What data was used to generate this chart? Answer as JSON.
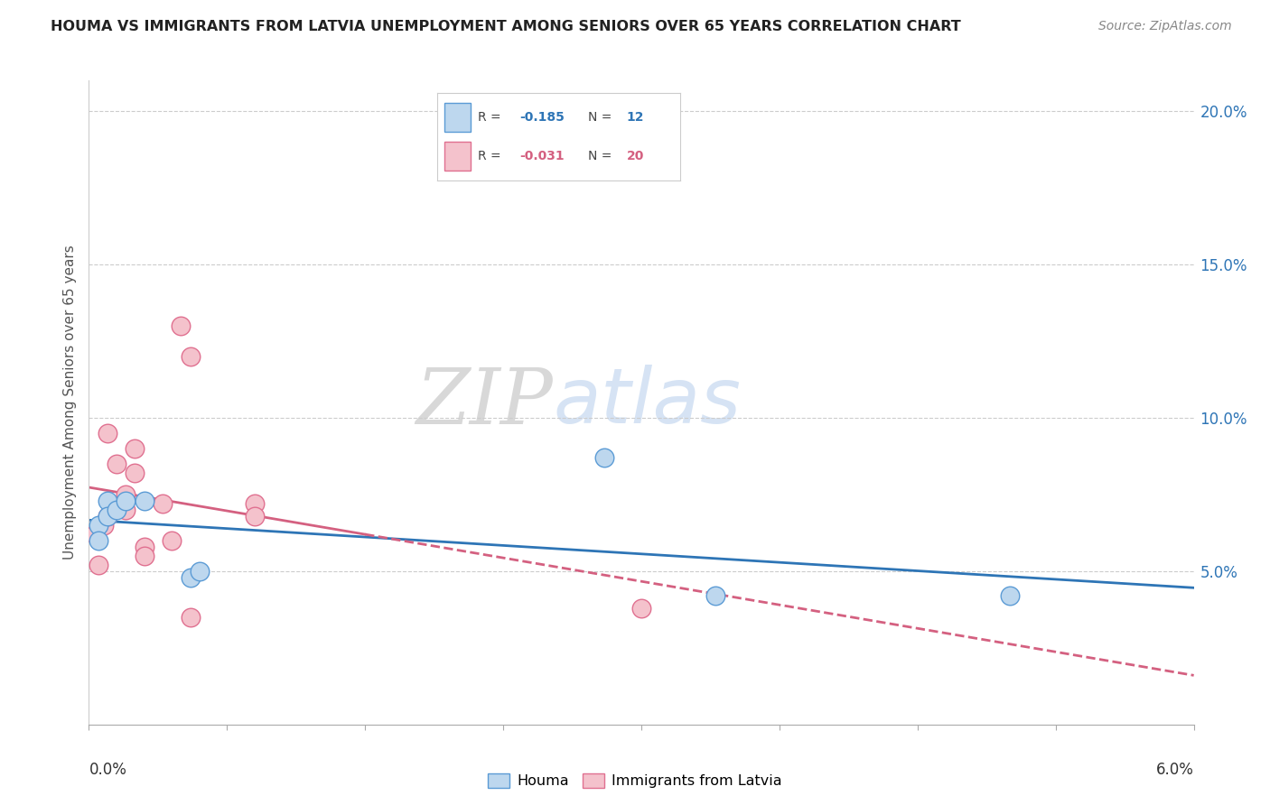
{
  "title": "HOUMA VS IMMIGRANTS FROM LATVIA UNEMPLOYMENT AMONG SENIORS OVER 65 YEARS CORRELATION CHART",
  "source": "Source: ZipAtlas.com",
  "ylabel": "Unemployment Among Seniors over 65 years",
  "xlim": [
    0.0,
    0.06
  ],
  "ylim": [
    0.0,
    0.21
  ],
  "yticks": [
    0.05,
    0.1,
    0.15,
    0.2
  ],
  "ytick_labels": [
    "5.0%",
    "10.0%",
    "15.0%",
    "20.0%"
  ],
  "houma_x": [
    0.0005,
    0.0005,
    0.001,
    0.001,
    0.0015,
    0.002,
    0.003,
    0.0055,
    0.006,
    0.028,
    0.034,
    0.05
  ],
  "houma_y": [
    0.065,
    0.06,
    0.073,
    0.068,
    0.07,
    0.073,
    0.073,
    0.048,
    0.05,
    0.087,
    0.042,
    0.042
  ],
  "latvia_x": [
    0.0003,
    0.0005,
    0.0008,
    0.001,
    0.001,
    0.0015,
    0.002,
    0.002,
    0.0025,
    0.0025,
    0.003,
    0.003,
    0.004,
    0.0045,
    0.005,
    0.0055,
    0.0055,
    0.009,
    0.009,
    0.03
  ],
  "latvia_y": [
    0.062,
    0.052,
    0.065,
    0.068,
    0.095,
    0.085,
    0.07,
    0.075,
    0.09,
    0.082,
    0.058,
    0.055,
    0.072,
    0.06,
    0.13,
    0.12,
    0.035,
    0.072,
    0.068,
    0.038
  ],
  "blue_face": "#bdd7ee",
  "blue_edge": "#5b9bd5",
  "pink_face": "#f4c2cc",
  "pink_edge": "#e07090",
  "line_blue": "#2e75b6",
  "line_pink": "#d46080",
  "watermark_zip": "#c8c8c8",
  "watermark_atlas": "#c5d8f0",
  "right_axis_color": "#2e75b6",
  "background": "#ffffff",
  "legend_R_blue": "-0.185",
  "legend_N_blue": "12",
  "legend_R_pink": "-0.031",
  "legend_N_pink": "20"
}
